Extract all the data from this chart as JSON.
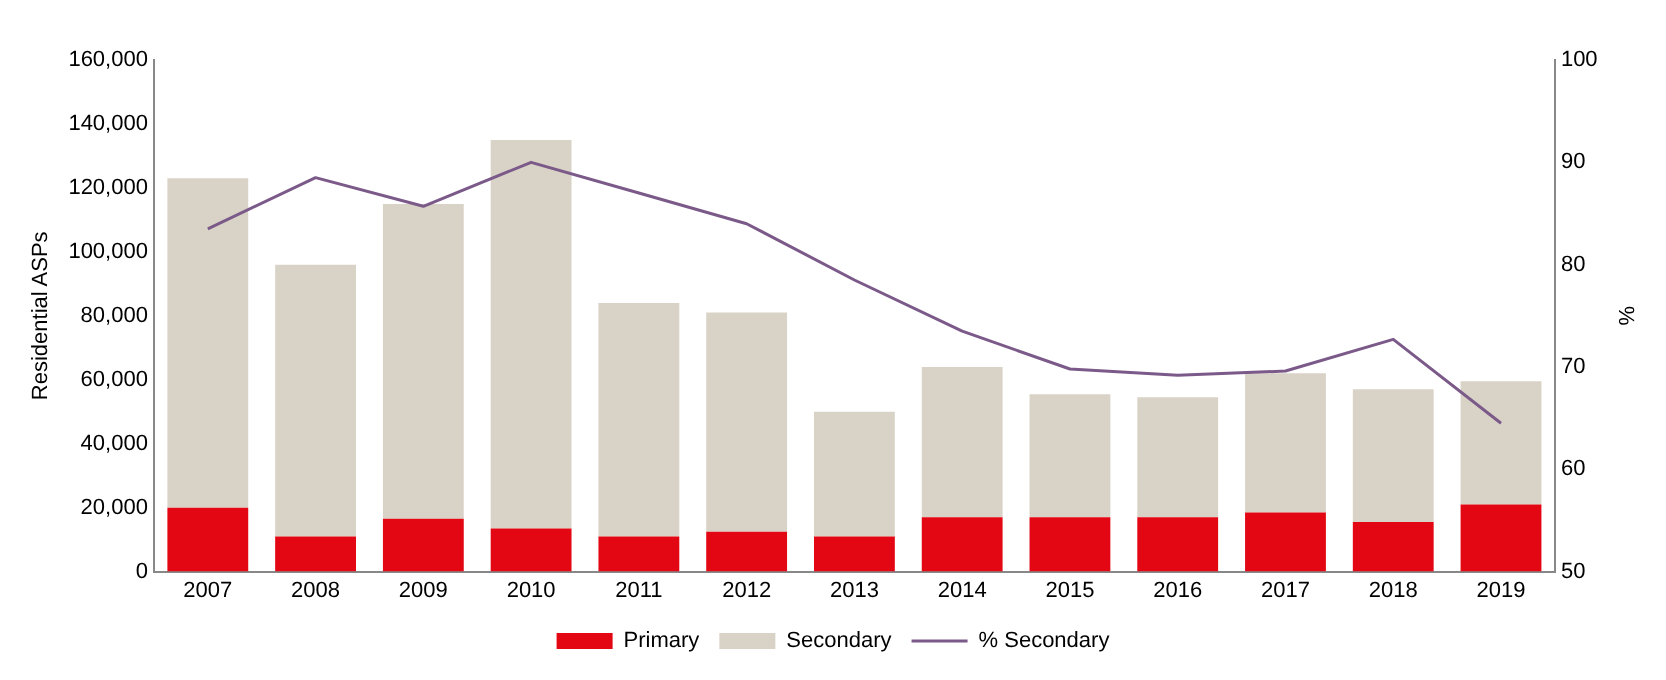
{
  "chart_data": {
    "type": "bar",
    "stacked": true,
    "ylabel": "Residential ASPs",
    "y2label": "%",
    "categories": [
      "2007",
      "2008",
      "2009",
      "2010",
      "2011",
      "2012",
      "2013",
      "2014",
      "2015",
      "2016",
      "2017",
      "2018",
      "2019"
    ],
    "series": [
      {
        "name": "Primary",
        "color": "#e30613",
        "values": [
          20000,
          11000,
          16500,
          13500,
          11000,
          12500,
          11000,
          17000,
          17000,
          17000,
          18500,
          15500,
          21000
        ]
      },
      {
        "name": "Secondary",
        "color": "#d9d3c7",
        "values": [
          103000,
          85000,
          98500,
          121500,
          73000,
          68500,
          39000,
          47000,
          38500,
          37500,
          43500,
          41500,
          38500
        ]
      },
      {
        "name": "% Secondary",
        "type": "line",
        "axis": "y2",
        "color": "#7b5a8a",
        "values": [
          83.5,
          88.5,
          85.7,
          90,
          87,
          84,
          78.5,
          73.5,
          69.8,
          69.2,
          69.6,
          72.7,
          64.5
        ]
      }
    ],
    "ylim": [
      0,
      160000
    ],
    "yticks": [
      0,
      {
        "value": 20000,
        "label": "20,000"
      },
      {
        "value": 40000,
        "label": "40,000"
      },
      {
        "value": 60000,
        "label": "60,000"
      },
      {
        "value": 80000,
        "label": "80,000"
      },
      {
        "value": 100000,
        "label": "100,000"
      },
      {
        "value": 120000,
        "label": "120,000"
      },
      {
        "value": 140000,
        "label": "140,000"
      },
      {
        "value": 160000,
        "label": "160,000"
      }
    ],
    "y2lim": [
      50,
      100
    ],
    "y2ticks": [
      50,
      60,
      70,
      80,
      90,
      100
    ],
    "grid": false,
    "legend": "bottom",
    "marker": "none"
  }
}
